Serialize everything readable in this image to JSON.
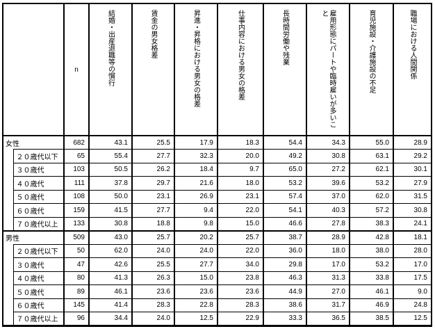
{
  "table": {
    "corner_label": "",
    "col_headers": [
      "n",
      "結婚・出産退職等の慣行",
      "賃金の男女格差",
      "昇進・昇格における男女の格差",
      "仕事内容における男女の格差",
      "長時間労働や残業",
      "雇用形態にパートや臨時雇いが多いこと",
      "育児施設・介護施設の不足",
      "職場における人間関係"
    ],
    "rows": [
      {
        "label": "女性",
        "level": "main",
        "values": [
          "682",
          "43.1",
          "25.5",
          "17.9",
          "18.3",
          "54.4",
          "34.3",
          "55.0",
          "28.9"
        ]
      },
      {
        "label": "２０歳代以下",
        "level": "sub",
        "values": [
          "65",
          "55.4",
          "27.7",
          "32.3",
          "20.0",
          "49.2",
          "30.8",
          "63.1",
          "29.2"
        ]
      },
      {
        "label": "３０歳代",
        "level": "sub",
        "values": [
          "103",
          "50.5",
          "26.2",
          "18.4",
          "9.7",
          "65.0",
          "27.2",
          "62.1",
          "30.1"
        ]
      },
      {
        "label": "４０歳代",
        "level": "sub",
        "values": [
          "111",
          "37.8",
          "29.7",
          "21.6",
          "18.0",
          "53.2",
          "39.6",
          "53.2",
          "27.9"
        ]
      },
      {
        "label": "５０歳代",
        "level": "sub",
        "values": [
          "108",
          "50.0",
          "23.1",
          "26.9",
          "23.1",
          "57.4",
          "37.0",
          "62.0",
          "31.5"
        ]
      },
      {
        "label": "６０歳代",
        "level": "sub",
        "values": [
          "159",
          "41.5",
          "27.7",
          "9.4",
          "22.0",
          "54.1",
          "40.3",
          "57.2",
          "30.8"
        ]
      },
      {
        "label": "７０歳代以上",
        "level": "sub",
        "values": [
          "133",
          "30.8",
          "18.8",
          "9.8",
          "15.0",
          "46.6",
          "27.8",
          "38.3",
          "24.1"
        ]
      },
      {
        "label": "男性",
        "level": "main",
        "values": [
          "509",
          "43.0",
          "25.7",
          "20.2",
          "25.7",
          "38.7",
          "28.9",
          "42.8",
          "18.1"
        ]
      },
      {
        "label": "２０歳代以下",
        "level": "sub",
        "values": [
          "50",
          "62.0",
          "24.0",
          "24.0",
          "22.0",
          "36.0",
          "18.0",
          "38.0",
          "28.0"
        ]
      },
      {
        "label": "３０歳代",
        "level": "sub",
        "values": [
          "47",
          "42.6",
          "25.5",
          "27.7",
          "34.0",
          "29.8",
          "17.0",
          "53.2",
          "17.0"
        ]
      },
      {
        "label": "４０歳代",
        "level": "sub",
        "values": [
          "80",
          "41.3",
          "26.3",
          "15.0",
          "23.8",
          "46.3",
          "31.3",
          "33.8",
          "17.5"
        ]
      },
      {
        "label": "５０歳代",
        "level": "sub",
        "values": [
          "89",
          "46.1",
          "23.6",
          "23.6",
          "23.6",
          "44.9",
          "27.0",
          "46.1",
          "9.0"
        ]
      },
      {
        "label": "６０歳代",
        "level": "sub",
        "values": [
          "145",
          "41.4",
          "28.3",
          "22.8",
          "28.3",
          "38.6",
          "31.7",
          "46.9",
          "24.8"
        ]
      },
      {
        "label": "７０歳代以上",
        "level": "sub",
        "values": [
          "96",
          "34.4",
          "24.0",
          "12.5",
          "22.9",
          "33.3",
          "36.5",
          "38.5",
          "12.5"
        ]
      }
    ]
  }
}
